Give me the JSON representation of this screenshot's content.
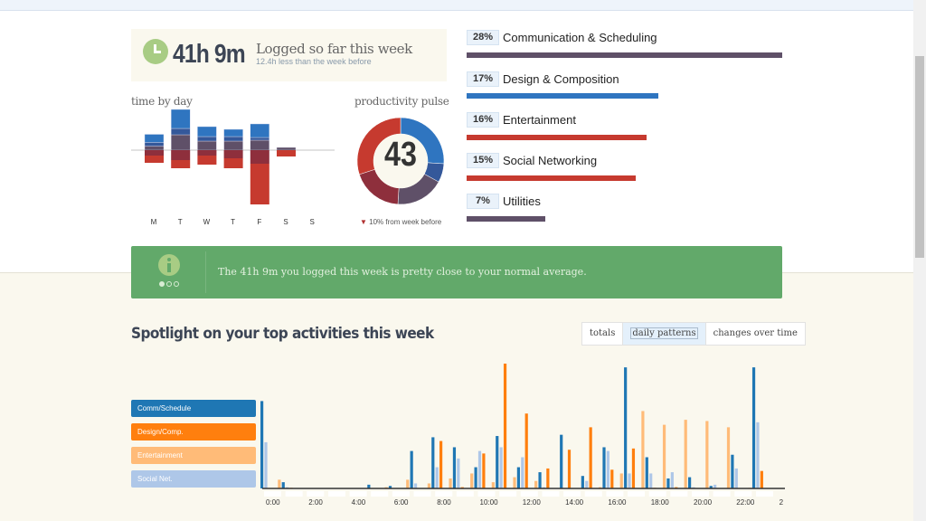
{
  "hero": {
    "total": "41h 9m",
    "caption": "Logged so far this week",
    "sub": "12.4h less than the week before",
    "icon": "clock-icon"
  },
  "time_by_day": {
    "title": "time by day",
    "days": [
      "M",
      "T",
      "W",
      "T",
      "F",
      "S",
      "S"
    ],
    "colors": [
      "#2f75c0",
      "#34589a",
      "#5f5068",
      "#8e2f3c",
      "#c63a2f"
    ],
    "above": [
      [
        1.8,
        0.8,
        0.9
      ],
      [
        4.2,
        1.4,
        3.4
      ],
      [
        2.2,
        1.0,
        2.0
      ],
      [
        1.6,
        1.0,
        2.0
      ],
      [
        3.0,
        0.6,
        2.2
      ],
      [
        0,
        0,
        0.6
      ],
      [
        0,
        0,
        0
      ]
    ],
    "below": [
      [
        1.2,
        1.6
      ],
      [
        2.2,
        1.8
      ],
      [
        1.2,
        2.0
      ],
      [
        1.8,
        2.2
      ],
      [
        3.0,
        9.0
      ],
      [
        0,
        1.4
      ],
      [
        0,
        0
      ]
    ]
  },
  "pulse": {
    "title": "productivity pulse",
    "score": "43",
    "note": "10% from week before",
    "trend": "down",
    "segments": [
      {
        "share": 26,
        "color": "#2f75c0"
      },
      {
        "share": 7,
        "color": "#34589a"
      },
      {
        "share": 18,
        "color": "#5f5068"
      },
      {
        "share": 19,
        "color": "#8e2f3c"
      },
      {
        "share": 30,
        "color": "#c63a2f"
      }
    ]
  },
  "categories": [
    {
      "pct": "28%",
      "name": "Communication & Scheduling",
      "value": 28,
      "color": "#5f5068"
    },
    {
      "pct": "17%",
      "name": "Design & Composition",
      "value": 17,
      "color": "#2f75c0"
    },
    {
      "pct": "16%",
      "name": "Entertainment",
      "value": 16,
      "color": "#c63a2f"
    },
    {
      "pct": "15%",
      "name": "Social Networking",
      "value": 15,
      "color": "#c63a2f"
    },
    {
      "pct": "7%",
      "name": "Utilities",
      "value": 7,
      "color": "#5f5068"
    }
  ],
  "banner": {
    "message": "The 41h 9m you logged this week is pretty close to your normal average.",
    "icon": "info-icon",
    "color": "#62a96a"
  },
  "spotlight": {
    "title": "Spotlight on your top activities this week",
    "tabs": [
      {
        "label": "totals"
      },
      {
        "label": "daily patterns",
        "selected": true
      },
      {
        "label": "changes over time"
      }
    ]
  },
  "chart_data": {
    "type": "bar",
    "xlabel": "",
    "ylabel": "",
    "categories": [
      "0:00",
      "1:00",
      "2:00",
      "3:00",
      "4:00",
      "5:00",
      "6:00",
      "7:00",
      "8:00",
      "9:00",
      "10:00",
      "11:00",
      "12:00",
      "13:00",
      "14:00",
      "15:00",
      "16:00",
      "17:00",
      "18:00",
      "19:00",
      "20:00",
      "21:00",
      "22:00",
      "23:00"
    ],
    "tick_labels": [
      "0:00",
      "2:00",
      "4:00",
      "6:00",
      "8:00",
      "10:00",
      "12:00",
      "14:00",
      "16:00",
      "18:00",
      "20:00",
      "22:00",
      "2"
    ],
    "series": [
      {
        "name": "Entertainment",
        "color": "#ffbb78",
        "values": [
          0,
          7,
          0,
          0,
          0,
          0,
          1,
          7,
          4,
          8,
          12,
          5,
          9,
          6,
          0,
          0,
          1,
          12,
          62,
          51,
          55,
          54,
          49,
          0.5
        ]
      },
      {
        "name": "Comm/Schedule",
        "color": "#1f77b4",
        "values": [
          70,
          5,
          0,
          0,
          0,
          3,
          2,
          30,
          41,
          33,
          17,
          42,
          17,
          13,
          43,
          10,
          33,
          97,
          25,
          8,
          9,
          2,
          27,
          97
        ]
      },
      {
        "name": "Social Net.",
        "color": "#aec7e8",
        "values": [
          37,
          1,
          0,
          0,
          0,
          0,
          0,
          4,
          17,
          24,
          30,
          33,
          25,
          1,
          0,
          6,
          30,
          12,
          12,
          13,
          1,
          3,
          16,
          53
        ]
      },
      {
        "name": "Design/Comp.",
        "color": "#ff7f0e",
        "values": [
          0,
          0.5,
          0,
          0,
          0,
          0,
          0,
          0,
          38,
          1,
          28,
          100,
          60,
          16,
          31,
          49,
          15,
          32,
          0.5,
          1,
          0,
          0,
          0,
          14
        ]
      }
    ],
    "legend": [
      "Comm/Schedule",
      "Design/Comp.",
      "Entertainment",
      "Social Net."
    ],
    "legend_colors": [
      "#1f77b4",
      "#ff7f0e",
      "#ffbb78",
      "#aec7e8"
    ],
    "ylim": [
      0,
      100
    ],
    "grid": false,
    "legend_position": "left"
  }
}
